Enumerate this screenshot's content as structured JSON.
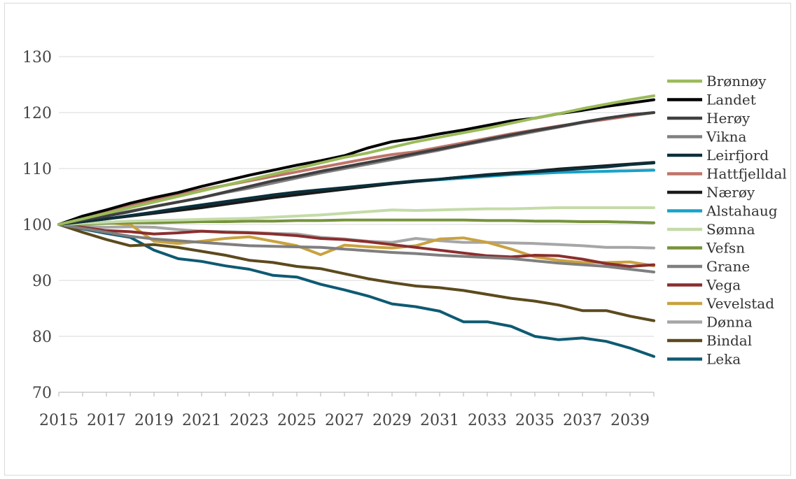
{
  "chart_data": {
    "type": "line",
    "title": "",
    "xlabel": "",
    "ylabel": "",
    "x": [
      2015,
      2016,
      2017,
      2018,
      2019,
      2020,
      2021,
      2022,
      2023,
      2024,
      2025,
      2026,
      2027,
      2028,
      2029,
      2030,
      2031,
      2032,
      2033,
      2034,
      2035,
      2036,
      2037,
      2038,
      2039,
      2040
    ],
    "x_tick_labels": [
      "2015",
      "2017",
      "2019",
      "2021",
      "2023",
      "2025",
      "2027",
      "2029",
      "2031",
      "2033",
      "2035",
      "2037",
      "2039"
    ],
    "y_tick_labels": [
      "70",
      "80",
      "90",
      "100",
      "110",
      "120",
      "130"
    ],
    "ylim": [
      70,
      130
    ],
    "grid": true,
    "legend_position": "right",
    "series": [
      {
        "name": "Brønnøy",
        "color": "#9bbb59",
        "values": [
          100,
          101,
          102,
          103,
          104,
          105,
          106,
          107,
          108,
          109,
          110,
          111,
          112,
          112.8,
          113.8,
          114.8,
          115.6,
          116.4,
          117.2,
          118.1,
          119,
          119.8,
          120.7,
          121.5,
          122.3,
          123
        ]
      },
      {
        "name": "Landet",
        "color": "#000000",
        "values": [
          100,
          101.5,
          102.6,
          103.8,
          104.8,
          105.7,
          106.8,
          107.8,
          108.8,
          109.7,
          110.6,
          111.4,
          112.3,
          113.7,
          114.8,
          115.4,
          116.2,
          116.9,
          117.7,
          118.5,
          119,
          119.8,
          120.4,
          121.1,
          121.7,
          122.3
        ]
      },
      {
        "name": "Herøy",
        "color": "#404040",
        "values": [
          100,
          100.8,
          101.5,
          102.3,
          103.2,
          104,
          104.8,
          105.8,
          106.8,
          107.8,
          108.6,
          109.5,
          110.3,
          111.1,
          111.9,
          112.7,
          113.5,
          114.3,
          115.2,
          116,
          116.8,
          117.5,
          118.3,
          119,
          119.6,
          120
        ]
      },
      {
        "name": "Vikna",
        "color": "#808080",
        "values": [
          100,
          100.8,
          101.6,
          102.4,
          103.2,
          104,
          104.8,
          105.7,
          106.5,
          107.4,
          108.3,
          109.2,
          110,
          110.8,
          111.6,
          112.5,
          113.3,
          114.2,
          115,
          115.8,
          116.6,
          117.4,
          118.2,
          119,
          119.6,
          120
        ]
      },
      {
        "name": "Leirfjord",
        "color": "#0b2f3a",
        "values": [
          100,
          100.5,
          101,
          101.6,
          102.2,
          102.9,
          103.5,
          104.1,
          104.7,
          105.3,
          105.8,
          106.2,
          106.6,
          107,
          107.4,
          107.8,
          108.1,
          108.5,
          108.8,
          109.1,
          109.4,
          109.7,
          110,
          110.3,
          110.7,
          111
        ]
      },
      {
        "name": "Hattfjelldal",
        "color": "#c0746a",
        "values": [
          100,
          101.3,
          102.5,
          103.5,
          104.5,
          105.3,
          106.2,
          107,
          107.8,
          108.6,
          109.4,
          110.2,
          111,
          111.8,
          112.5,
          113,
          113.8,
          114.6,
          115.4,
          116.2,
          116.9,
          117.6,
          118.2,
          118.8,
          119.4,
          120
        ]
      },
      {
        "name": "Nærøy",
        "color": "#1a1a1a",
        "values": [
          100,
          100.5,
          101,
          101.5,
          102,
          102.5,
          103,
          103.6,
          104.2,
          104.8,
          105.3,
          105.8,
          106.3,
          106.8,
          107.3,
          107.7,
          108.1,
          108.5,
          108.9,
          109.2,
          109.5,
          109.9,
          110.2,
          110.5,
          110.8,
          111.1
        ]
      },
      {
        "name": "Alstahaug",
        "color": "#17a2c8",
        "values": [
          100,
          100.5,
          101,
          101.6,
          102.2,
          102.8,
          103.4,
          104,
          104.6,
          105.1,
          105.6,
          106,
          106.5,
          106.9,
          107.3,
          107.7,
          108,
          108.3,
          108.6,
          108.9,
          109.1,
          109.3,
          109.4,
          109.5,
          109.6,
          109.7
        ]
      },
      {
        "name": "Sømna",
        "color": "#c4dba8",
        "values": [
          100,
          100.2,
          100.4,
          100.6,
          100.7,
          100.8,
          100.9,
          101,
          101.1,
          101.3,
          101.5,
          101.7,
          102,
          102.3,
          102.6,
          102.5,
          102.6,
          102.7,
          102.8,
          102.8,
          102.9,
          103,
          103,
          103,
          103,
          103
        ]
      },
      {
        "name": "Vefsn",
        "color": "#77933c",
        "values": [
          100,
          100.1,
          100.2,
          100.3,
          100.3,
          100.4,
          100.5,
          100.5,
          100.6,
          100.6,
          100.7,
          100.7,
          100.8,
          100.8,
          100.8,
          100.8,
          100.8,
          100.8,
          100.7,
          100.7,
          100.6,
          100.6,
          100.5,
          100.5,
          100.4,
          100.3
        ]
      },
      {
        "name": "Grane",
        "color": "#7f7f7f",
        "values": [
          100,
          99.3,
          98.6,
          97.9,
          97.4,
          97.1,
          96.8,
          96.5,
          96.2,
          96.1,
          96,
          95.9,
          95.6,
          95.3,
          95,
          94.8,
          94.5,
          94.3,
          94.1,
          93.9,
          93.5,
          93.1,
          92.8,
          92.5,
          92,
          91.5
        ]
      },
      {
        "name": "Vega",
        "color": "#8b2e2e",
        "values": [
          100,
          99.5,
          98.9,
          98.7,
          98.3,
          98.5,
          98.8,
          98.6,
          98.5,
          98.3,
          98,
          97.5,
          97.3,
          96.9,
          96.4,
          95.9,
          95.4,
          94.9,
          94.4,
          94.2,
          94.5,
          94.4,
          93.8,
          93,
          92.5,
          92.8
        ]
      },
      {
        "name": "Vevelstad",
        "color": "#c9a23f",
        "values": [
          100,
          100.3,
          100.3,
          100,
          97,
          96.6,
          97,
          97.5,
          97.8,
          97,
          96.2,
          94.6,
          96.3,
          96,
          95.8,
          96.2,
          97.4,
          97.6,
          96.8,
          95.6,
          94.2,
          93.6,
          93.2,
          93.2,
          93.3,
          92.6
        ]
      },
      {
        "name": "Dønna",
        "color": "#a6a6a6",
        "values": [
          100,
          99.7,
          99.5,
          99.6,
          99.5,
          99.1,
          98.8,
          98.7,
          98.6,
          98.4,
          98.3,
          97.7,
          97.4,
          97,
          96.8,
          97.5,
          97.1,
          96.8,
          96.8,
          96.7,
          96.6,
          96.4,
          96.2,
          95.9,
          95.9,
          95.8
        ]
      },
      {
        "name": "Bindal",
        "color": "#5c4a1e",
        "values": [
          100,
          98.6,
          97.3,
          96.2,
          96.4,
          95.9,
          95.2,
          94.5,
          93.6,
          93.2,
          92.5,
          92.1,
          91.2,
          90.3,
          89.6,
          89,
          88.7,
          88.2,
          87.5,
          86.8,
          86.3,
          85.6,
          84.6,
          84.6,
          83.6,
          82.8
        ]
      },
      {
        "name": "Leka",
        "color": "#0e5a73",
        "values": [
          100,
          99.2,
          98.4,
          97.7,
          95.4,
          93.9,
          93.4,
          92.6,
          92,
          90.9,
          90.6,
          89.3,
          88.3,
          87.2,
          85.8,
          85.3,
          84.5,
          82.6,
          82.6,
          81.8,
          80,
          79.4,
          79.7,
          79.1,
          77.9,
          76.4
        ]
      }
    ]
  }
}
